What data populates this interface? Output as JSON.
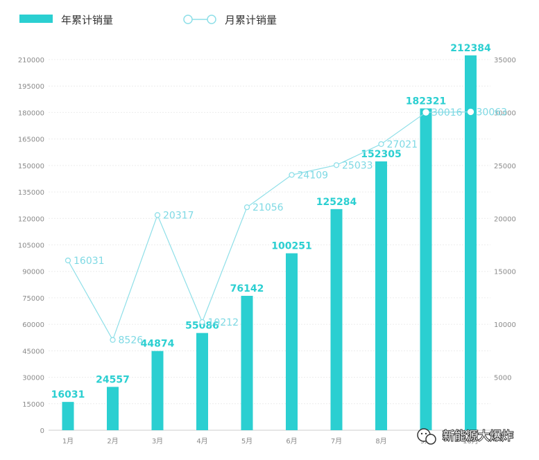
{
  "chart_data": {
    "type": "bar",
    "categories": [
      "1月",
      "2月",
      "3月",
      "4月",
      "5月",
      "6月",
      "7月",
      "8月",
      "9月",
      "10月"
    ],
    "series": [
      {
        "name": "年累计销量",
        "type": "bar",
        "axis": "left",
        "values": [
          16031,
          24557,
          44874,
          55086,
          76142,
          100251,
          125284,
          152305,
          182321,
          212384
        ]
      },
      {
        "name": "月累计销量",
        "type": "line",
        "axis": "right",
        "values": [
          16031,
          8526,
          20317,
          10212,
          21056,
          24109,
          25033,
          27021,
          30016,
          30063
        ]
      }
    ],
    "yleft": {
      "ticks": [
        0,
        15000,
        30000,
        45000,
        60000,
        75000,
        90000,
        105000,
        120000,
        135000,
        150000,
        165000,
        180000,
        195000,
        210000
      ],
      "ylim": [
        0,
        210000
      ]
    },
    "yright": {
      "ticks": [
        5000,
        10000,
        15000,
        20000,
        25000,
        30000,
        35000
      ],
      "ylim": [
        0,
        35000
      ]
    },
    "grid": true,
    "legend": "top-left",
    "colors": {
      "bar": "#2bcfd1",
      "line": "#8edfe8",
      "bar_label": "#2bcfd1",
      "line_label": "#7ed9e4"
    }
  },
  "legend": {
    "bar_label": "年累计销量",
    "line_label": "月累计销量"
  },
  "watermark": {
    "text": "新能源大爆炸",
    "icon": "wechat-icon"
  }
}
